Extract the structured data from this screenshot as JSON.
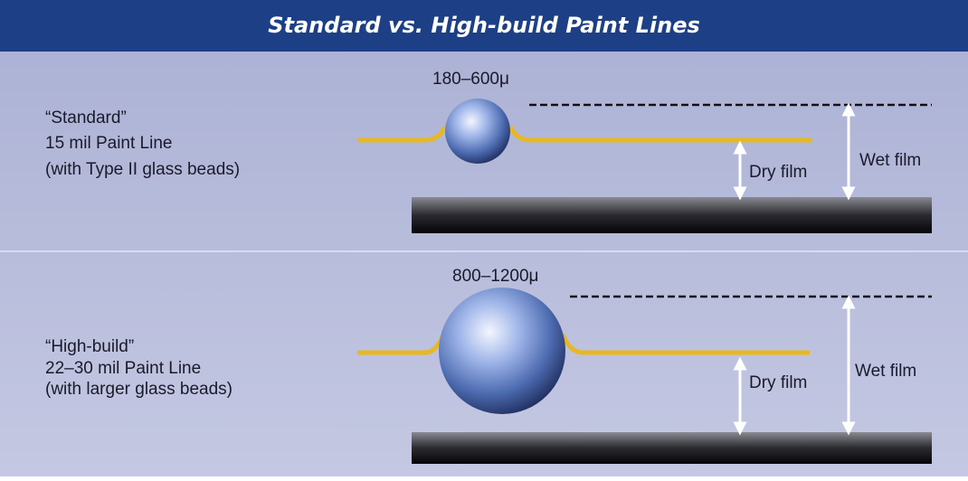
{
  "header": {
    "title": "Standard vs. High-build Paint Lines"
  },
  "panels": [
    {
      "label": [
        "“Standard”",
        "15 mil Paint Line",
        "(with Type II glass beads)"
      ],
      "bead_size": "180–600μ",
      "dry_film": "Dry film",
      "wet_film": "Wet film"
    },
    {
      "label": [
        "“High-build”",
        "22–30 mil Paint Line",
        "(with larger glass beads)"
      ],
      "bead_size": "800–1200μ",
      "dry_film": "Dry film",
      "wet_film": "Wet film"
    }
  ]
}
